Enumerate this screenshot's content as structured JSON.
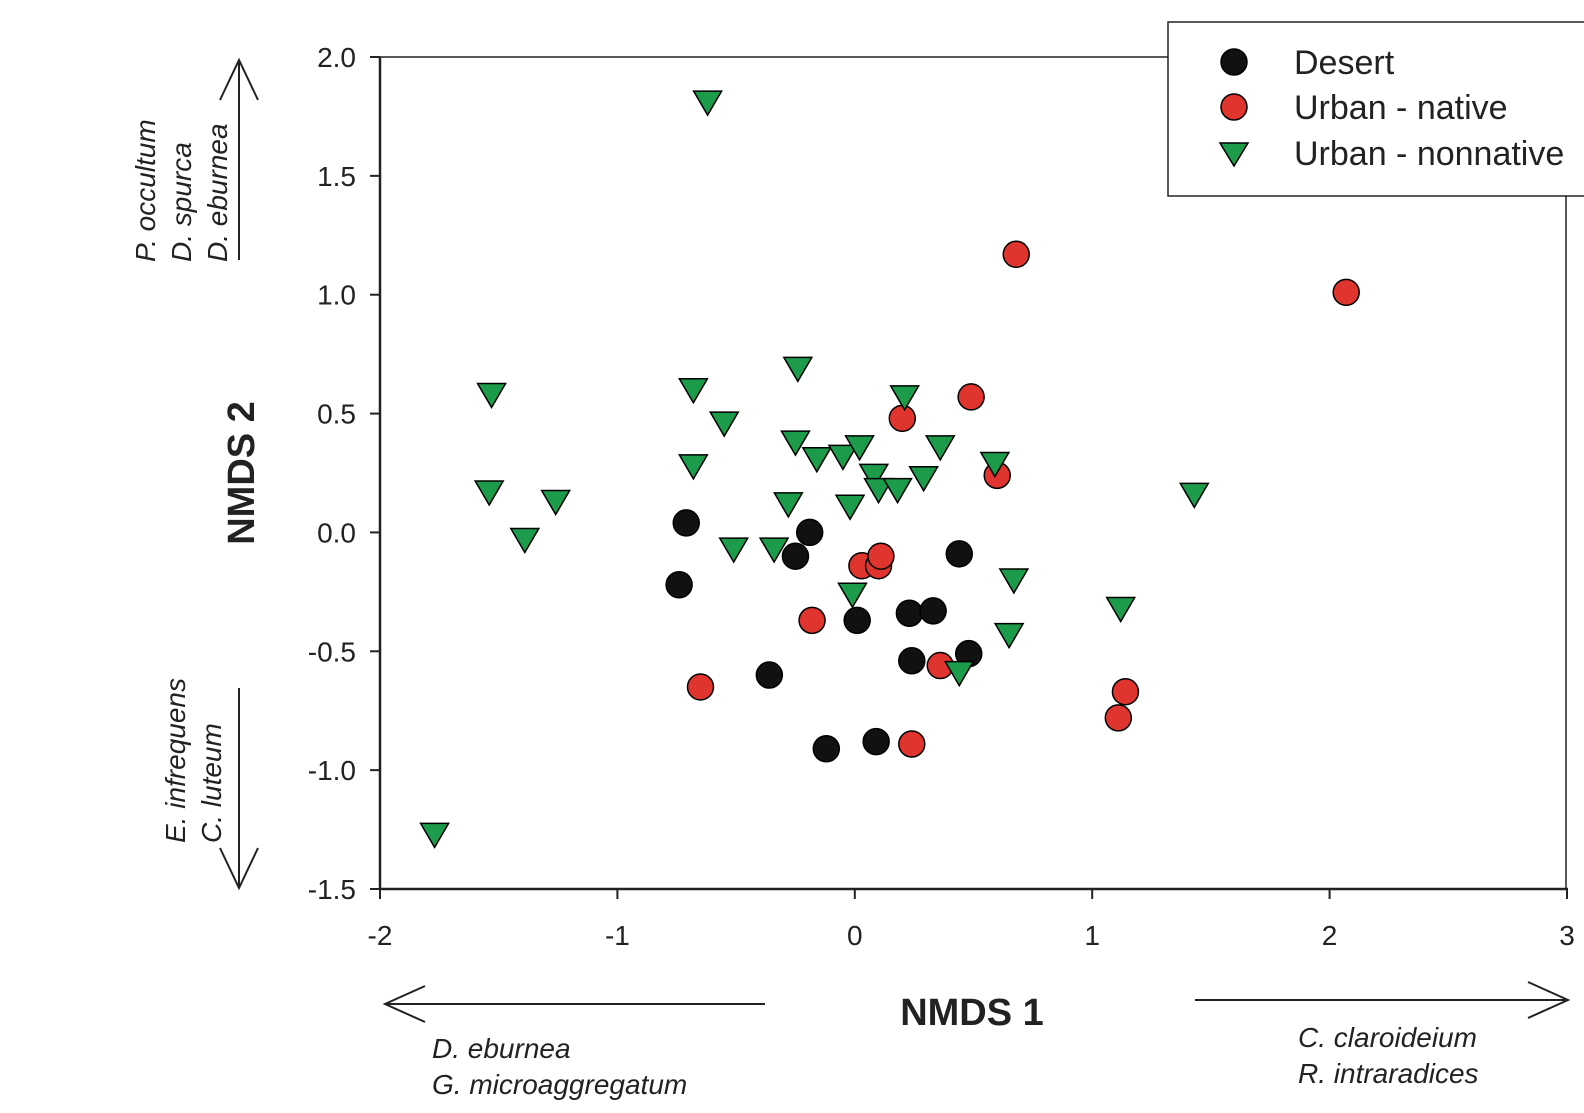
{
  "chart_data": {
    "type": "scatter",
    "xlabel": "NMDS 1",
    "ylabel": "NMDS 2",
    "xlim": [
      -2,
      3
    ],
    "ylim": [
      -1.5,
      2.0
    ],
    "xticks": [
      -2,
      -1,
      0,
      1,
      2,
      3
    ],
    "yticks": [
      2.0,
      1.5,
      1.0,
      0.5,
      0.0,
      -0.5,
      -1.0,
      -1.5
    ],
    "xtick_labels": [
      "-2",
      "-1",
      "0",
      "1",
      "2",
      "3"
    ],
    "ytick_labels": [
      "2.0",
      "1.5",
      "1.0",
      "0.5",
      "0.0",
      "-0.5",
      "-1.0",
      "-1.5"
    ],
    "grid": false,
    "legend_position": "top-right",
    "series": [
      {
        "name": "Desert",
        "marker": "circle",
        "color": "#111111",
        "points": [
          [
            -0.71,
            0.04
          ],
          [
            -0.19,
            0.0
          ],
          [
            -0.25,
            -0.1
          ],
          [
            -0.74,
            -0.22
          ],
          [
            0.44,
            -0.09
          ],
          [
            0.23,
            -0.34
          ],
          [
            0.33,
            -0.33
          ],
          [
            0.01,
            -0.37
          ],
          [
            0.24,
            -0.54
          ],
          [
            0.48,
            -0.51
          ],
          [
            -0.36,
            -0.6
          ],
          [
            0.09,
            -0.88
          ],
          [
            -0.12,
            -0.91
          ]
        ]
      },
      {
        "name": "Urban - native",
        "marker": "circle",
        "color": "#e0342e",
        "points": [
          [
            0.68,
            1.17
          ],
          [
            2.07,
            1.01
          ],
          [
            0.49,
            0.57
          ],
          [
            0.2,
            0.48
          ],
          [
            0.6,
            0.24
          ],
          [
            0.03,
            -0.14
          ],
          [
            0.1,
            -0.14
          ],
          [
            0.11,
            -0.1
          ],
          [
            -0.18,
            -0.37
          ],
          [
            0.36,
            -0.56
          ],
          [
            -0.65,
            -0.65
          ],
          [
            1.14,
            -0.67
          ],
          [
            1.11,
            -0.78
          ],
          [
            0.24,
            -0.89
          ]
        ]
      },
      {
        "name": "Urban - nonnative",
        "marker": "triangle-down",
        "color": "#1c9b4b",
        "points": [
          [
            -0.62,
            1.81
          ],
          [
            -1.53,
            0.58
          ],
          [
            -0.68,
            0.6
          ],
          [
            -0.24,
            0.69
          ],
          [
            -0.55,
            0.46
          ],
          [
            0.21,
            0.57
          ],
          [
            -0.25,
            0.38
          ],
          [
            -0.16,
            0.31
          ],
          [
            -0.05,
            0.32
          ],
          [
            0.02,
            0.36
          ],
          [
            0.36,
            0.36
          ],
          [
            0.59,
            0.29
          ],
          [
            -0.68,
            0.28
          ],
          [
            0.08,
            0.24
          ],
          [
            0.29,
            0.23
          ],
          [
            0.1,
            0.18
          ],
          [
            0.18,
            0.18
          ],
          [
            -1.54,
            0.17
          ],
          [
            -1.26,
            0.13
          ],
          [
            -0.28,
            0.12
          ],
          [
            -0.02,
            0.11
          ],
          [
            1.43,
            0.16
          ],
          [
            -1.39,
            -0.03
          ],
          [
            -0.51,
            -0.07
          ],
          [
            -0.34,
            -0.07
          ],
          [
            0.67,
            -0.2
          ],
          [
            -0.01,
            -0.26
          ],
          [
            1.12,
            -0.32
          ],
          [
            0.65,
            -0.43
          ],
          [
            0.44,
            -0.59
          ],
          [
            -1.77,
            -1.27
          ]
        ]
      }
    ]
  },
  "annotations": {
    "y_positive_species": [
      "P. occultum",
      "D. spurca",
      "D. eburnea"
    ],
    "y_negative_species": [
      "E. infrequens",
      "C. luteum"
    ],
    "x_negative_species": [
      "D. eburnea",
      "G. microaggregatum"
    ],
    "x_positive_species": [
      "C. claroideium",
      "R. intraradices"
    ]
  },
  "colors": {
    "desert": "#111111",
    "urban_native": "#e0342e",
    "urban_nonnative": "#1c9b4b",
    "axis": "#222222"
  }
}
